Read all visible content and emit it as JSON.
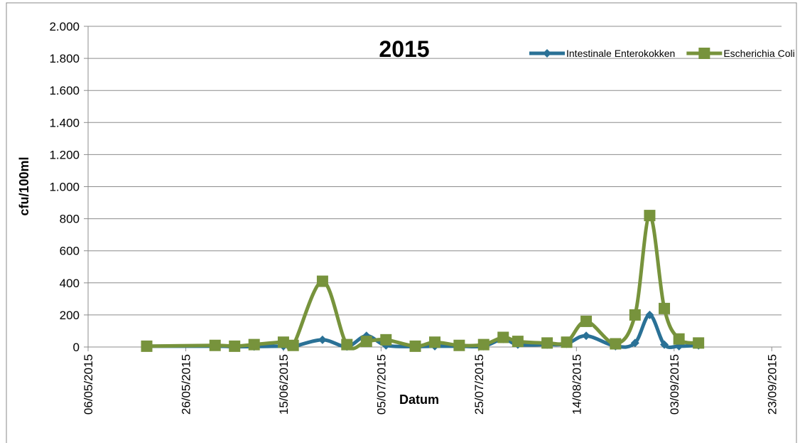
{
  "chart_data": {
    "type": "line",
    "title": "2015",
    "x_label": "Datum",
    "y_label": "cfu/100ml",
    "x": [
      "18/05/2015",
      "01/06/2015",
      "05/06/2015",
      "09/06/2015",
      "15/06/2015",
      "17/06/2015",
      "23/06/2015",
      "28/06/2015",
      "02/07/2015",
      "06/07/2015",
      "12/07/2015",
      "16/07/2015",
      "21/07/2015",
      "26/07/2015",
      "30/07/2015",
      "02/08/2015",
      "08/08/2015",
      "12/08/2015",
      "16/08/2015",
      "22/08/2015",
      "26/08/2015",
      "29/08/2015",
      "01/09/2015",
      "04/09/2015",
      "08/09/2015"
    ],
    "series": [
      {
        "name": "Intestinale Enterokokken",
        "color": "#2a7196",
        "marker": "diamond",
        "values": [
          5,
          5,
          2,
          3,
          5,
          3,
          45,
          3,
          70,
          10,
          3,
          5,
          5,
          5,
          50,
          15,
          15,
          20,
          70,
          5,
          25,
          200,
          15,
          5,
          10
        ]
      },
      {
        "name": "Escherichia Coli",
        "color": "#77933c",
        "marker": "square",
        "values": [
          5,
          10,
          5,
          15,
          30,
          10,
          410,
          15,
          35,
          45,
          5,
          30,
          10,
          15,
          60,
          35,
          25,
          30,
          160,
          20,
          200,
          820,
          240,
          50,
          25
        ]
      }
    ],
    "xlim": [
      "06/05/2015",
      "25/09/2015"
    ],
    "xticks": [
      "06/05/2015",
      "26/05/2015",
      "15/06/2015",
      "05/07/2015",
      "25/07/2015",
      "14/08/2015",
      "03/09/2015",
      "23/09/2015"
    ],
    "ylim": [
      0,
      2000
    ],
    "yticks": [
      0,
      200,
      400,
      600,
      800,
      {
        "value": 1000,
        "label": "1.000"
      },
      {
        "value": 1200,
        "label": "1.200"
      },
      {
        "value": 1400,
        "label": "1.400"
      },
      {
        "value": 1600,
        "label": "1.600"
      },
      {
        "value": 1800,
        "label": "1.800"
      },
      {
        "value": 2000,
        "label": "2.000"
      }
    ],
    "grid": true,
    "smooth": true,
    "legend": "top-right"
  }
}
